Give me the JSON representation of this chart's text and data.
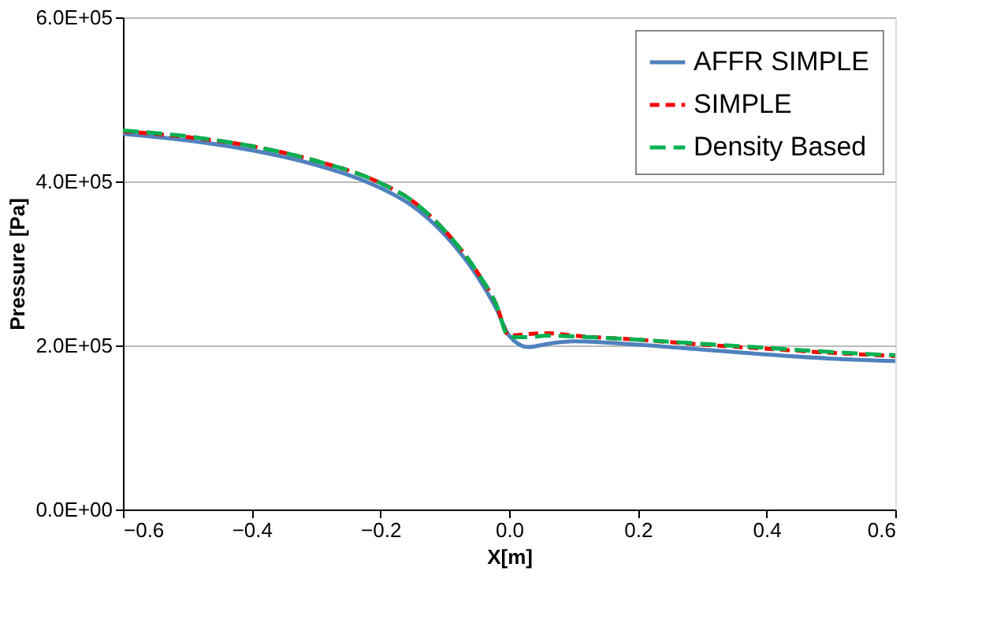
{
  "chart_data": {
    "type": "line",
    "xlabel": "X[m]",
    "ylabel": "Pressure [Pa]",
    "xlim": [
      -0.6,
      0.6
    ],
    "xticks": [
      {
        "value": -0.6,
        "label": "−0.6"
      },
      {
        "value": -0.4,
        "label": "−0.4"
      },
      {
        "value": -0.2,
        "label": "−0.2"
      },
      {
        "value": 0,
        "label": "0.0"
      },
      {
        "value": 0.2,
        "label": "0.2"
      },
      {
        "value": 0.4,
        "label": "0.4"
      },
      {
        "value": 0.6,
        "label": "0.6"
      }
    ],
    "ylim": [
      0,
      600000
    ],
    "yticks": [
      {
        "value": 0,
        "label": "0.0E+00"
      },
      {
        "value": 200000,
        "label": "2.0E+05"
      },
      {
        "value": 400000,
        "label": "4.0E+05"
      },
      {
        "value": 600000,
        "label": "6.0E+05"
      }
    ],
    "grid": "y",
    "legend": "top right",
    "marker": "none",
    "x": [
      -0.6,
      -0.5,
      -0.4,
      -0.3,
      -0.2,
      -0.15,
      -0.1,
      -0.05,
      -0.02,
      0,
      0.03,
      0.06,
      0.1,
      0.2,
      0.3,
      0.4,
      0.5,
      0.6
    ],
    "series": [
      {
        "name": "AFFR SIMPLE",
        "color": "#4f81bd",
        "line_style": "solid",
        "values": [
          458000,
          450000,
          438000,
          420000,
          392000,
          370000,
          335000,
          285000,
          245000,
          212000,
          198000,
          202000,
          205000,
          201000,
          195000,
          189000,
          184000,
          181000
        ]
      },
      {
        "name": "SIMPLE",
        "color": "#ff0000",
        "line_style": "dashed",
        "values": [
          461000,
          454000,
          443000,
          425000,
          398000,
          376000,
          340000,
          290000,
          250000,
          212000,
          214000,
          215000,
          212000,
          207000,
          201000,
          196000,
          191000,
          187000
        ]
      },
      {
        "name": "Density Based",
        "color": "#00b050",
        "line_style": "dashed",
        "values": [
          462000,
          455000,
          443000,
          425000,
          398000,
          376000,
          340000,
          290000,
          250000,
          210000,
          210000,
          212000,
          211000,
          207000,
          202000,
          197000,
          192000,
          188000
        ]
      }
    ]
  }
}
